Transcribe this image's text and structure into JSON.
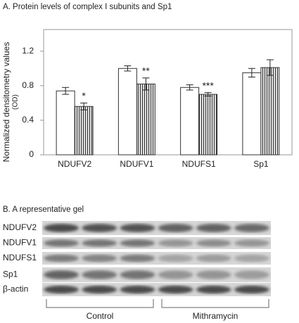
{
  "chart_data": {
    "type": "bar",
    "title": "A. Protein levels of complex I subunits and Sp1",
    "y_label": [
      "Normalized densitometry values",
      "(OD)"
    ],
    "categories": [
      "NDUFV2",
      "NDUFV1",
      "NDUFS1",
      "Sp1"
    ],
    "series": [
      {
        "color": "#ffffff",
        "values": [
          0.74,
          1.0,
          0.78,
          0.95
        ],
        "errors": [
          0.04,
          0.03,
          0.03,
          0.05
        ]
      },
      {
        "color": "#ffffff",
        "hatch": true,
        "values": [
          0.56,
          0.82,
          0.7,
          1.01
        ],
        "errors": [
          0.04,
          0.07,
          0.02,
          0.09
        ]
      }
    ],
    "annotations": [
      "*",
      "**",
      "***",
      null
    ],
    "ylim": [
      0,
      1.45
    ],
    "yticks": [
      0,
      0.4,
      0.8,
      1.2
    ]
  },
  "gel": {
    "title": "B. A representative gel",
    "rows": [
      "NDUFV2",
      "NDUFV1",
      "NDUFS1",
      "Sp1",
      "β-actin"
    ],
    "groups": [
      "Control",
      "Mithramycin"
    ]
  }
}
